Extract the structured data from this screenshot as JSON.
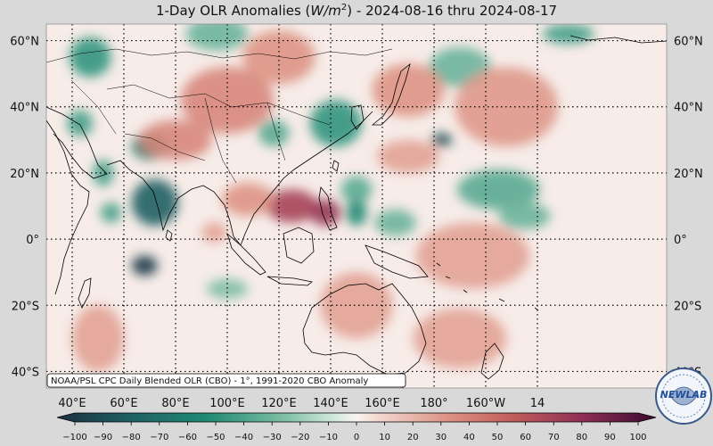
{
  "title": {
    "prefix": "1-Day OLR Anomalies (",
    "unit_base": "W/m",
    "unit_exp": "2",
    "suffix": ") - 2024-08-16 thru 2024-08-17"
  },
  "source_note": "NOAA/PSL CPC Daily Blended OLR (CBO) - 1°, 1991-2020 CBO Anomaly",
  "logo": {
    "text_left": "NEW",
    "text_right": "LAB"
  },
  "map": {
    "lon_range": [
      30,
      270
    ],
    "lat_range": [
      -45,
      65
    ],
    "lon_ticks": [
      {
        "lon": 40,
        "label": "40°E"
      },
      {
        "lon": 60,
        "label": "60°E"
      },
      {
        "lon": 80,
        "label": "80°E"
      },
      {
        "lon": 100,
        "label": "100°E"
      },
      {
        "lon": 120,
        "label": "120°E"
      },
      {
        "lon": 140,
        "label": "140°E"
      },
      {
        "lon": 160,
        "label": "160°E"
      },
      {
        "lon": 180,
        "label": "180°"
      },
      {
        "lon": 200,
        "label": "160°W"
      },
      {
        "lon": 220,
        "label": "14"
      }
    ],
    "lat_ticks": [
      {
        "lat": 60,
        "label": "60°N"
      },
      {
        "lat": 40,
        "label": "40°N"
      },
      {
        "lat": 20,
        "label": "20°N"
      },
      {
        "lat": 0,
        "label": "0°"
      },
      {
        "lat": -20,
        "label": "20°S"
      },
      {
        "lat": -40,
        "label": "40°S"
      }
    ],
    "anomaly_blobs": [
      {
        "lon": 72,
        "lat": 11,
        "rx": 9,
        "ry": 7,
        "v": -75
      },
      {
        "lon": 68,
        "lat": -8,
        "rx": 5,
        "ry": 3,
        "v": -95
      },
      {
        "lon": 70,
        "lat": 28,
        "rx": 7,
        "ry": 4,
        "v": -60
      },
      {
        "lon": 183,
        "lat": 30,
        "rx": 4,
        "ry": 2,
        "v": -85
      },
      {
        "lon": 142,
        "lat": 35,
        "rx": 10,
        "ry": 7,
        "v": -45
      },
      {
        "lon": 118,
        "lat": 32,
        "rx": 6,
        "ry": 4,
        "v": -35
      },
      {
        "lon": 96,
        "lat": 62,
        "rx": 12,
        "ry": 5,
        "v": -30
      },
      {
        "lon": 47,
        "lat": 55,
        "rx": 8,
        "ry": 6,
        "v": -45
      },
      {
        "lon": 43,
        "lat": 35,
        "rx": 5,
        "ry": 4,
        "v": -40
      },
      {
        "lon": 150,
        "lat": 15,
        "rx": 6,
        "ry": 4,
        "v": -35
      },
      {
        "lon": 165,
        "lat": 5,
        "rx": 8,
        "ry": 4,
        "v": -30
      },
      {
        "lon": 205,
        "lat": 15,
        "rx": 16,
        "ry": 6,
        "v": -35
      },
      {
        "lon": 215,
        "lat": 7,
        "rx": 10,
        "ry": 4,
        "v": -30
      },
      {
        "lon": 232,
        "lat": 62,
        "rx": 10,
        "ry": 3,
        "v": -40
      },
      {
        "lon": 55,
        "lat": 8,
        "rx": 4,
        "ry": 3,
        "v": -40
      },
      {
        "lon": 100,
        "lat": -15,
        "rx": 8,
        "ry": 3,
        "v": -25
      },
      {
        "lon": 150,
        "lat": 8,
        "rx": 4,
        "ry": 4,
        "v": -50
      },
      {
        "lon": 52,
        "lat": 20,
        "rx": 4,
        "ry": 4,
        "v": -40
      },
      {
        "lon": 190,
        "lat": 52,
        "rx": 12,
        "ry": 6,
        "v": -30
      },
      {
        "lon": 125,
        "lat": 10,
        "rx": 10,
        "ry": 5,
        "v": 65
      },
      {
        "lon": 138,
        "lat": 8,
        "rx": 6,
        "ry": 4,
        "v": 72
      },
      {
        "lon": 108,
        "lat": 12,
        "rx": 10,
        "ry": 5,
        "v": 30
      },
      {
        "lon": 80,
        "lat": 30,
        "rx": 14,
        "ry": 6,
        "v": 35
      },
      {
        "lon": 100,
        "lat": 42,
        "rx": 18,
        "ry": 10,
        "v": 35
      },
      {
        "lon": 120,
        "lat": 55,
        "rx": 14,
        "ry": 8,
        "v": 30
      },
      {
        "lon": 170,
        "lat": 45,
        "rx": 14,
        "ry": 8,
        "v": 30
      },
      {
        "lon": 208,
        "lat": 40,
        "rx": 20,
        "ry": 12,
        "v": 28
      },
      {
        "lon": 195,
        "lat": -5,
        "rx": 22,
        "ry": 10,
        "v": 25
      },
      {
        "lon": 150,
        "lat": -20,
        "rx": 14,
        "ry": 10,
        "v": 25
      },
      {
        "lon": 190,
        "lat": -30,
        "rx": 18,
        "ry": 9,
        "v": 25
      },
      {
        "lon": 50,
        "lat": -30,
        "rx": 10,
        "ry": 10,
        "v": 25
      },
      {
        "lon": 170,
        "lat": 25,
        "rx": 12,
        "ry": 5,
        "v": 25
      },
      {
        "lon": 95,
        "lat": 2,
        "rx": 5,
        "ry": 3,
        "v": 25
      }
    ]
  },
  "colorbar": {
    "ticks": [
      -100,
      -90,
      -80,
      -70,
      -60,
      -50,
      -40,
      -30,
      -20,
      -10,
      0,
      10,
      20,
      30,
      40,
      50,
      60,
      70,
      80,
      90,
      100
    ]
  },
  "colors": {
    "very_negative": "#1a2f3f",
    "negative": "#1f7a6a",
    "light_negative": "#a8d3c0",
    "neutral": "#f7ece8",
    "light_positive": "#e8a898",
    "positive": "#c1544f",
    "very_positive": "#3a0a2e",
    "land_outline": "#000000",
    "background": "#d9d9d9"
  }
}
